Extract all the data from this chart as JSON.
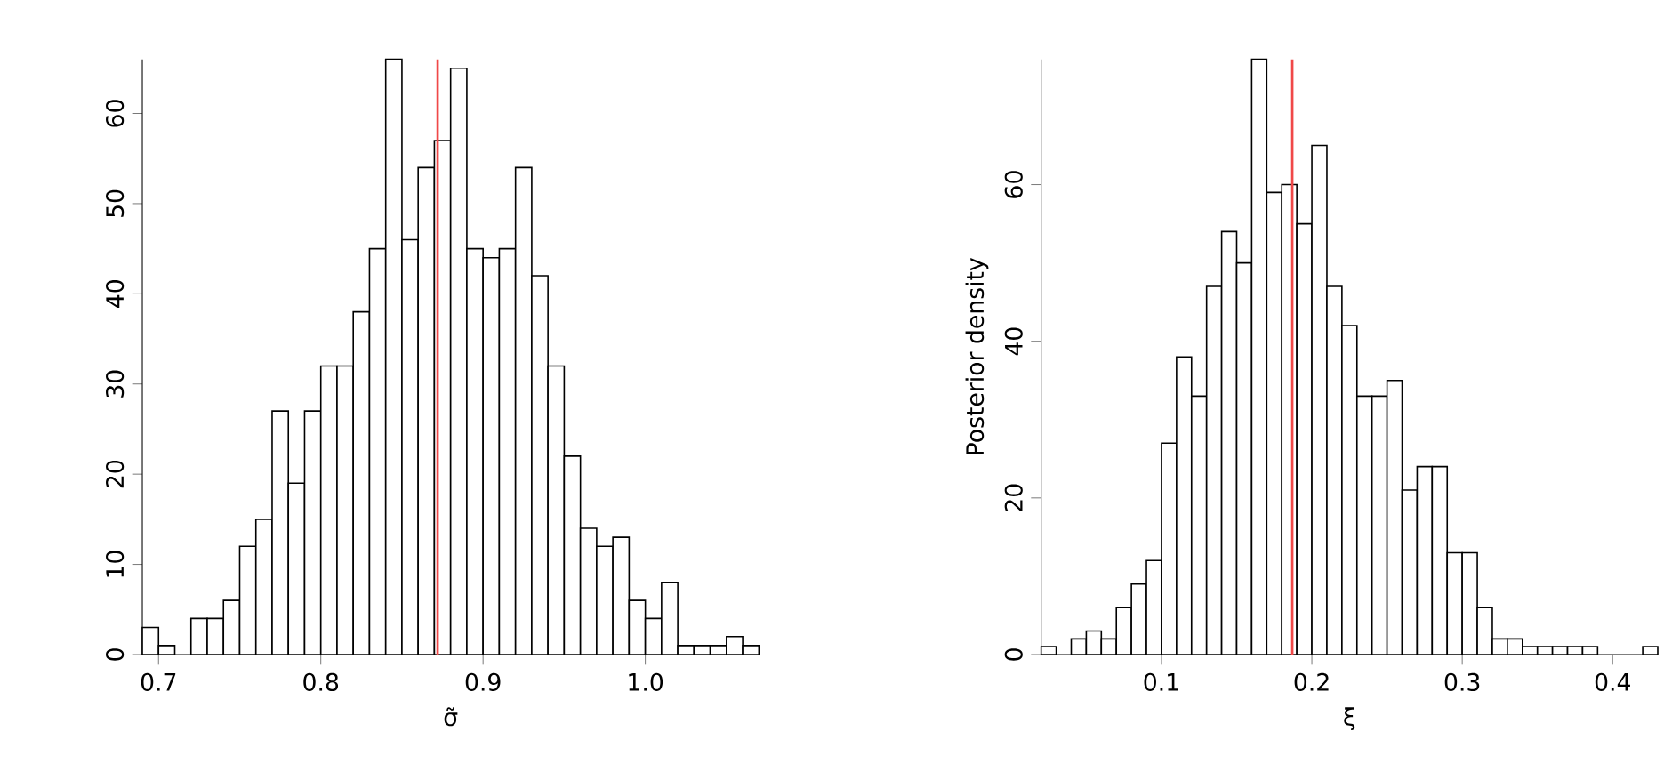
{
  "chart_data": [
    {
      "type": "histogram",
      "xlabel": "σ̃",
      "color": "#ffffff",
      "bins": [
        0.69,
        0.7,
        0.71,
        0.72,
        0.73,
        0.74,
        0.75,
        0.76,
        0.77,
        0.78,
        0.79,
        0.8,
        0.81,
        0.82,
        0.83,
        0.84,
        0.85,
        0.86,
        0.87,
        0.88,
        0.89,
        0.9,
        0.91,
        0.92,
        0.93,
        0.94,
        0.95,
        0.96,
        0.97,
        0.98,
        0.99,
        1.0,
        1.01,
        1.02,
        1.03,
        1.04,
        1.05,
        1.06,
        1.07
      ],
      "values": [
        3,
        1,
        0,
        4,
        4,
        6,
        12,
        15,
        27,
        19,
        27,
        32,
        32,
        38,
        45,
        66,
        46,
        54,
        57,
        65,
        45,
        44,
        45,
        54,
        42,
        32,
        22,
        14,
        12,
        13,
        6,
        4,
        8,
        1,
        1,
        1,
        2,
        1
      ],
      "xlim": [
        0.69,
        1.07
      ],
      "ylim": [
        0,
        66
      ],
      "xticks": [
        {
          "value": 0.7,
          "label": "0.7"
        },
        {
          "value": 0.8,
          "label": "0.8"
        },
        {
          "value": 0.9,
          "label": "0.9"
        },
        {
          "value": 1.0,
          "label": "1.0"
        }
      ],
      "yticks": [
        0,
        10,
        20,
        30,
        40,
        50,
        60
      ],
      "ref_lines": [
        {
          "axis": "x",
          "value": 0.872,
          "color": "#f04848"
        }
      ]
    },
    {
      "type": "histogram",
      "xlabel": "ξ",
      "ylabel": "Posterior density",
      "color": "#ffffff",
      "bins": [
        0.02,
        0.03,
        0.04,
        0.05,
        0.06,
        0.07,
        0.08,
        0.09,
        0.1,
        0.11,
        0.12,
        0.13,
        0.14,
        0.15,
        0.16,
        0.17,
        0.18,
        0.19,
        0.2,
        0.21,
        0.22,
        0.23,
        0.24,
        0.25,
        0.26,
        0.27,
        0.28,
        0.29,
        0.3,
        0.31,
        0.32,
        0.33,
        0.34,
        0.35,
        0.36,
        0.37,
        0.38,
        0.39,
        0.4,
        0.41,
        0.42,
        0.43
      ],
      "values": [
        1,
        0,
        2,
        3,
        2,
        6,
        9,
        12,
        27,
        38,
        33,
        47,
        54,
        50,
        76,
        59,
        60,
        55,
        65,
        47,
        42,
        33,
        33,
        35,
        21,
        24,
        24,
        13,
        13,
        6,
        2,
        2,
        1,
        1,
        1,
        1,
        1,
        0,
        0,
        0,
        1
      ],
      "xlim": [
        0.02,
        0.43
      ],
      "ylim": [
        0,
        76
      ],
      "xticks": [
        0.1,
        0.2,
        0.3,
        0.4
      ],
      "yticks": [
        0,
        20,
        40,
        60
      ],
      "ref_lines": [
        {
          "axis": "x",
          "value": 0.187,
          "color": "#f04848"
        }
      ]
    }
  ]
}
